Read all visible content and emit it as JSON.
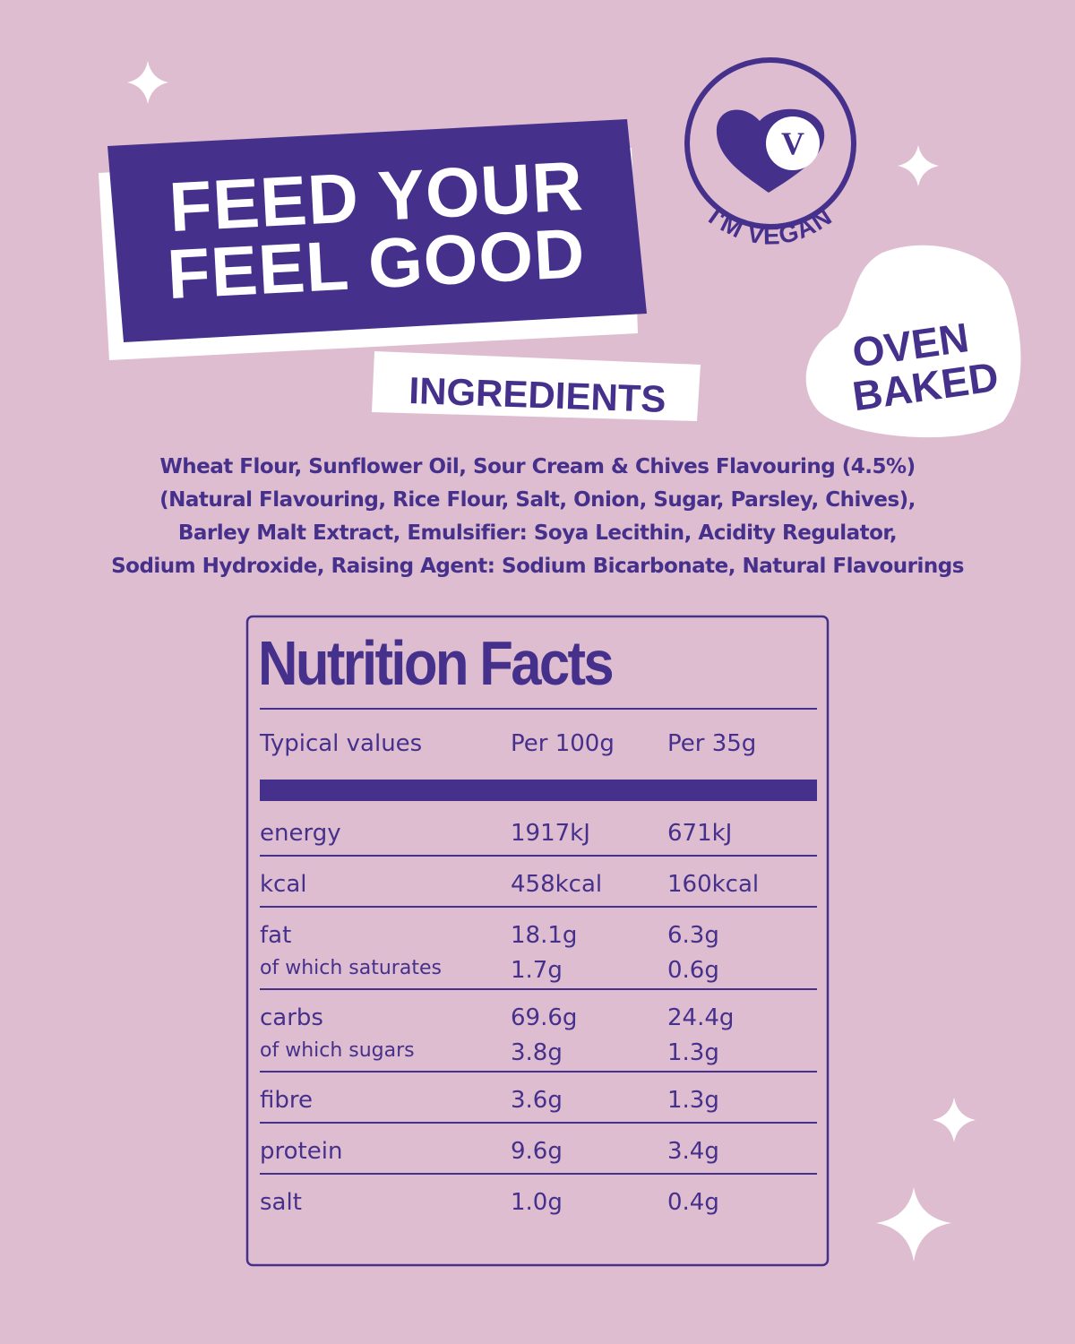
{
  "header": {
    "title_lines": [
      "FEED YOUR",
      "FEEL GOOD"
    ]
  },
  "badges": {
    "vegan_letter": "V",
    "vegan_label": "I'M VEGAN",
    "oven_lines": [
      "OVEN",
      "BAKED"
    ]
  },
  "ingredients": {
    "heading": "INGREDIENTS",
    "lines": [
      "Wheat Flour,  Sunflower Oil, Sour Cream & Chives Flavouring (4.5%)",
      "(Natural Flavouring, Rice Flour, Salt, Onion, Sugar, Parsley, Chives),",
      "Barley Malt Extract, Emulsifier: Soya Lecithin, Acidity Regulator,",
      "Sodium Hydroxide, Raising Agent: Sodium Bicarbonate, Natural Flavourings"
    ]
  },
  "nutrition": {
    "title": "Nutrition Facts",
    "columns": [
      "Typical values",
      "Per 100g",
      "Per 35g"
    ],
    "groups": [
      [
        [
          "energy",
          "1917kJ",
          "671kJ"
        ]
      ],
      [
        [
          "kcal",
          "458kcal",
          "160kcal"
        ]
      ],
      [
        [
          "fat",
          "18.1g",
          "6.3g"
        ],
        [
          "of which saturates",
          "1.7g",
          "0.6g"
        ]
      ],
      [
        [
          "carbs",
          "69.6g",
          "24.4g"
        ],
        [
          "of which sugars",
          "3.8g",
          "1.3g"
        ]
      ],
      [
        [
          "fibre",
          "3.6g",
          "1.3g"
        ]
      ],
      [
        [
          "protein",
          "9.6g",
          "3.4g"
        ]
      ],
      [
        [
          "salt",
          "1.0g",
          "0.4g"
        ]
      ]
    ]
  }
}
